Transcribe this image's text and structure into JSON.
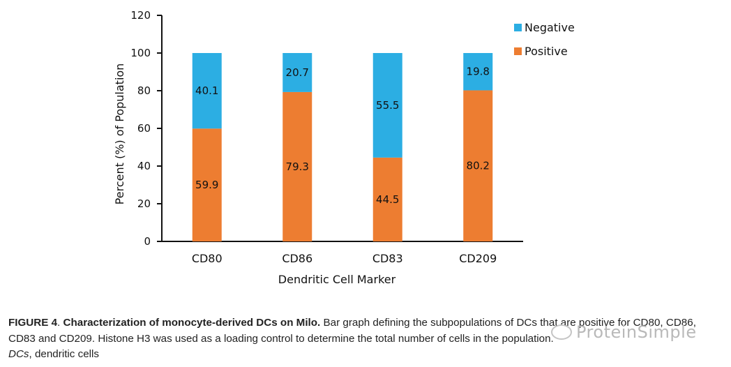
{
  "chart_data": {
    "type": "bar",
    "stacked": true,
    "categories": [
      "CD80",
      "CD86",
      "CD83",
      "CD209"
    ],
    "series": [
      {
        "name": "Positive",
        "values": [
          59.9,
          79.3,
          44.5,
          80.2
        ],
        "color": "#ED7D31"
      },
      {
        "name": "Negative",
        "values": [
          40.1,
          20.7,
          55.5,
          19.8
        ],
        "color": "#2CAEE3"
      }
    ],
    "title": "",
    "xlabel": "Dendritic Cell Marker",
    "ylabel": "Percent (%) of Population",
    "ylim": [
      0,
      120
    ],
    "yticks": [
      0,
      20,
      40,
      60,
      80,
      100,
      120
    ],
    "legend": {
      "position": "top-right",
      "entries": [
        "Negative",
        "Positive"
      ]
    },
    "grid": false
  },
  "caption": {
    "label": "FIGURE 4",
    "title": "Characterization of monocyte-derived DCs on Milo.",
    "body": "Bar graph defining the subpopulations of DCs that are positive for CD80, CD86, CD83 and CD209. Histone H3 was used as a loading control to determine the total number of cells in the population.",
    "abbr": "DCs",
    "abbr_def": ", dendritic cells"
  },
  "watermark": {
    "text": "ProteinSimple"
  }
}
